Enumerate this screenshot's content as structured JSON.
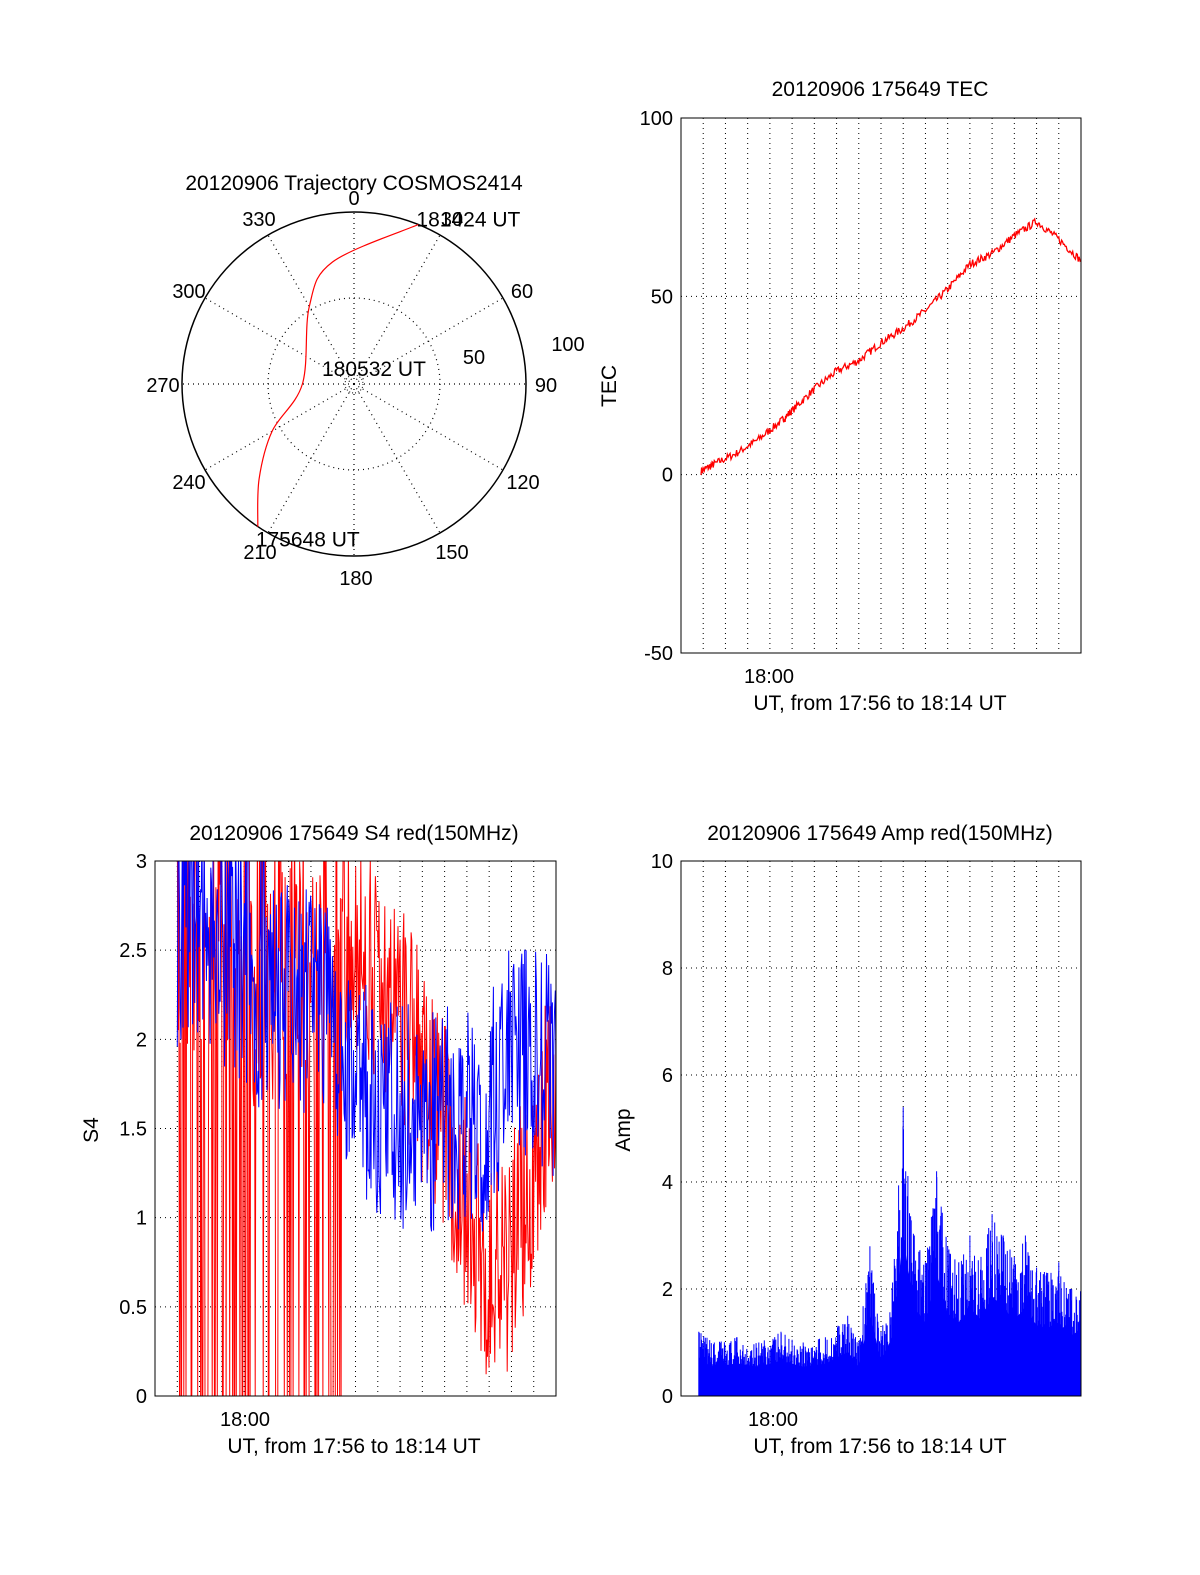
{
  "chart_data": [
    {
      "type": "polar",
      "title": "20120906 Trajectory COSMOS2414",
      "azimuth_labels": [
        "0",
        "30",
        "60",
        "90",
        "120",
        "150",
        "180",
        "210",
        "240",
        "270",
        "300",
        "330"
      ],
      "radial_labels": [
        "50",
        "100"
      ],
      "trajectory_color": "#ff0000",
      "trajectory": [
        {
          "az": 214,
          "r": 100
        },
        {
          "az": 225,
          "r": 78
        },
        {
          "az": 240,
          "r": 55
        },
        {
          "az": 270,
          "r": 30
        },
        {
          "az": 330,
          "r": 52
        },
        {
          "az": 350,
          "r": 72
        },
        {
          "az": 22,
          "r": 100
        }
      ],
      "point_labels": [
        {
          "text": "175648 UT",
          "az": 214,
          "r": 100
        },
        {
          "text": "180532 UT",
          "az": 0,
          "r": 0
        },
        {
          "text": "181424 UT",
          "az": 22,
          "r": 100
        }
      ]
    },
    {
      "type": "line",
      "title": "20120906 175649 TEC",
      "ylabel": "TEC",
      "xlabel": "UT, from 17:56 to 18:14 UT",
      "xlim": [
        0,
        18
      ],
      "x_tick_label": "18:00",
      "ylim": [
        -50,
        100
      ],
      "yticks": [
        "-50",
        "0",
        "50",
        "100"
      ],
      "series": [
        {
          "color": "#ff0000",
          "x": [
            0.9,
            1.5,
            2.5,
            3.5,
            4.5,
            5.0,
            6.0,
            7.0,
            8.0,
            9.0,
            10.0,
            11.0,
            12.0,
            13.0,
            14.0,
            15.0,
            16.0,
            17.0,
            18.0
          ],
          "y": [
            1,
            3,
            6,
            10,
            15,
            18,
            24,
            29,
            32,
            37,
            41,
            46,
            52,
            59,
            62,
            67,
            71,
            66,
            60
          ]
        }
      ]
    },
    {
      "type": "line",
      "title": "20120906 175649 S4 red(150MHz)",
      "ylabel": "S4",
      "xlabel": "UT, from 17:56 to 18:14 UT",
      "xlim": [
        0,
        18
      ],
      "x_tick_label": "18:00",
      "ylim": [
        0,
        3
      ],
      "yticks": [
        "0",
        "0.5",
        "1",
        "1.5",
        "2",
        "2.5",
        "3"
      ],
      "series": [
        {
          "color": "#ff0000",
          "x": [
            0,
            1,
            2,
            3,
            4,
            5,
            6,
            7,
            8,
            9,
            10,
            11,
            12,
            13,
            14,
            15,
            16,
            17,
            18
          ],
          "y": [
            2.5,
            2.6,
            2.4,
            2.5,
            2.3,
            2.2,
            2.4,
            2.3,
            2.6,
            2.5,
            2.4,
            2.2,
            1.8,
            1.6,
            1.0,
            0.7,
            0.8,
            1.3,
            1.9
          ]
        },
        {
          "color": "#0000ff",
          "x": [
            0,
            1,
            2,
            3,
            4,
            5,
            6,
            7,
            8,
            9,
            10,
            11,
            12,
            13,
            14,
            15,
            16,
            17,
            18
          ],
          "y": [
            2.7,
            2.6,
            2.5,
            2.5,
            2.4,
            2.2,
            2.3,
            2.2,
            2.1,
            1.8,
            1.5,
            1.6,
            1.5,
            1.6,
            1.5,
            1.6,
            2.0,
            1.9,
            1.8
          ]
        }
      ]
    },
    {
      "type": "bar",
      "title": "20120906 175649 Amp red(150MHz)",
      "ylabel": "Amp",
      "xlabel": "UT, from 17:56 to 18:14 UT",
      "xlim": [
        0,
        18
      ],
      "x_tick_label": "18:00",
      "ylim": [
        0,
        10
      ],
      "yticks": [
        "0",
        "2",
        "4",
        "6",
        "8",
        "10"
      ],
      "series": [
        {
          "color": "#0000ff",
          "x": [
            0.8,
            1.5,
            2.5,
            3.5,
            4.5,
            5.5,
            6.5,
            7.5,
            8.0,
            8.5,
            9.0,
            9.5,
            10.0,
            10.5,
            11.0,
            11.5,
            12.0,
            12.5,
            13.0,
            13.5,
            14.0,
            14.5,
            15.0,
            15.5,
            16.0,
            16.5,
            17.0,
            17.5,
            18.0
          ],
          "y": [
            1.2,
            1.0,
            1.1,
            1.0,
            1.2,
            1.0,
            1.1,
            1.5,
            1.0,
            2.8,
            1.2,
            2.0,
            5.4,
            3.0,
            2.5,
            4.2,
            2.8,
            2.5,
            3.0,
            2.6,
            3.4,
            3.0,
            2.6,
            3.0,
            2.4,
            2.3,
            2.5,
            2.0,
            2.3
          ]
        }
      ]
    }
  ]
}
